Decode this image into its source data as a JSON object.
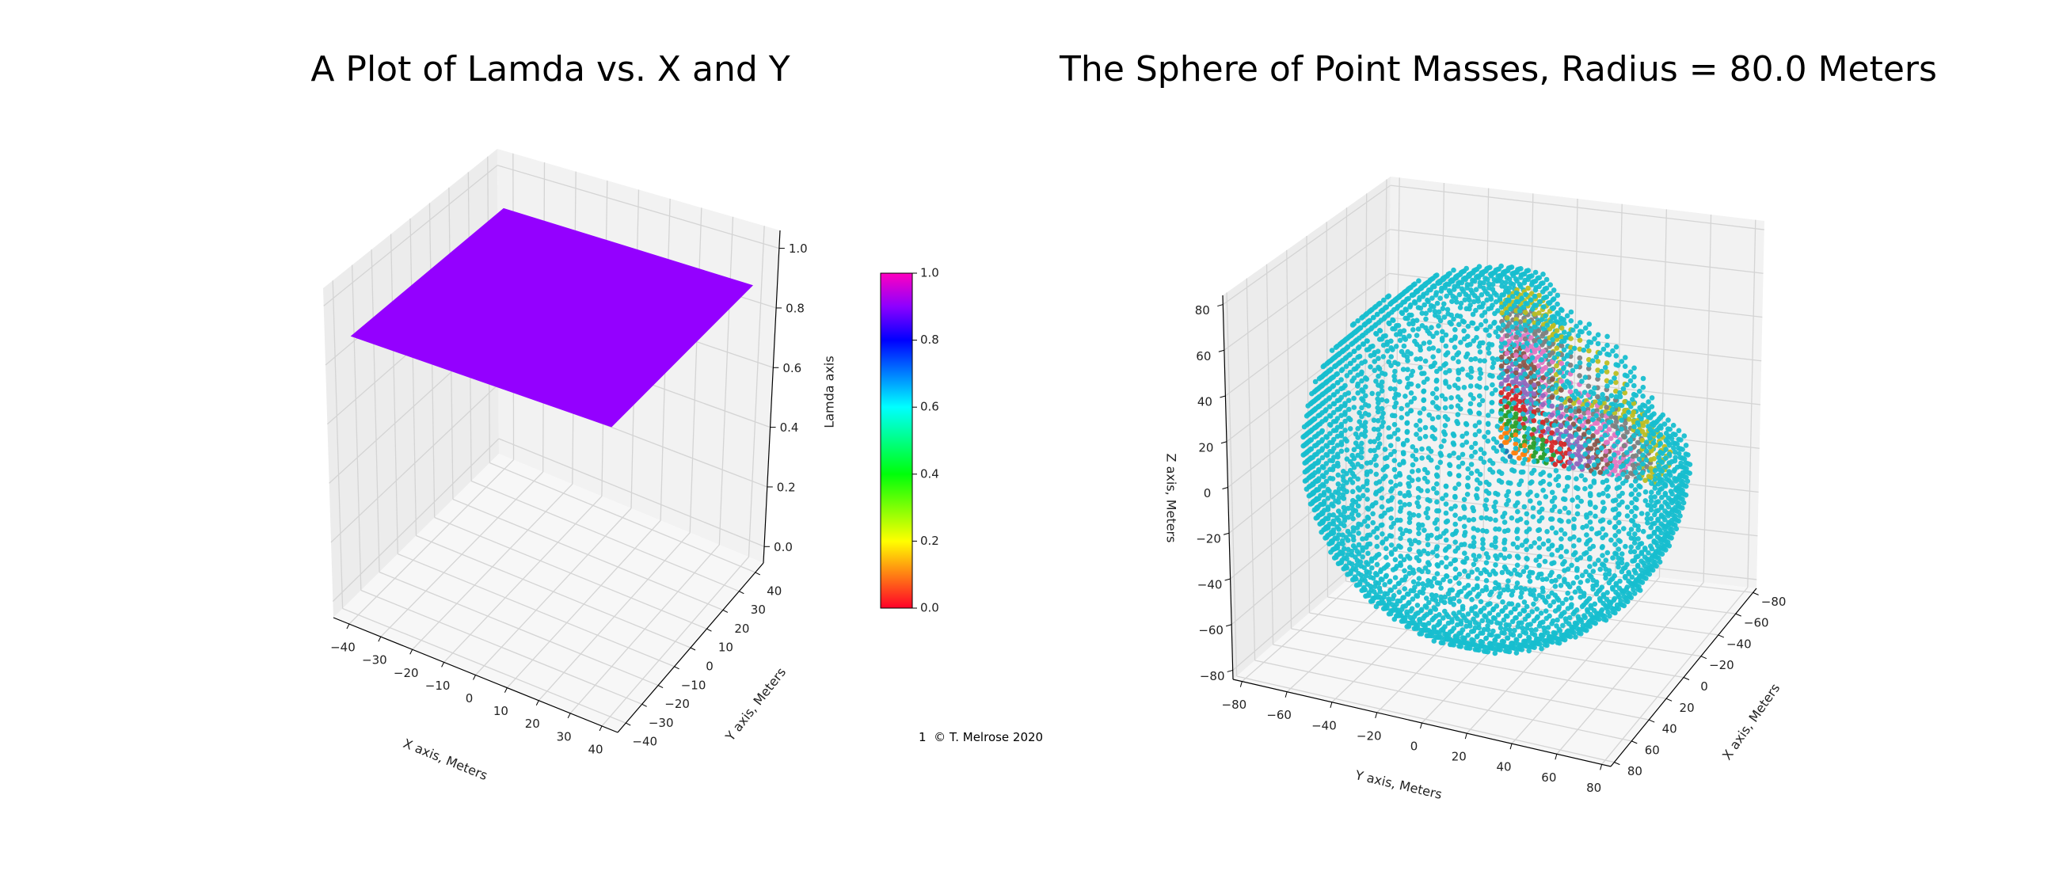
{
  "footer": "1  © T. Melrose 2020",
  "chart_data": [
    {
      "type": "surface",
      "title": "A Plot of Lamda vs. X and Y",
      "xlabel": "X axis, Meters",
      "ylabel": "Y axis, Meters",
      "zlabel": "Lamda axis",
      "xlim": [
        -45,
        45
      ],
      "ylim": [
        -45,
        45
      ],
      "zlim": [
        -0.055,
        1.06
      ],
      "xticks": [
        -40,
        -30,
        -20,
        -10,
        0,
        10,
        20,
        30,
        40
      ],
      "yticks": [
        -40,
        -30,
        -20,
        -10,
        0,
        10,
        20,
        30,
        40
      ],
      "zticks": [
        0.0,
        0.2,
        0.4,
        0.6,
        0.8,
        1.0
      ],
      "xtick_labels": [
        "−40",
        "−30",
        "−20",
        "−10",
        "0",
        "10",
        "20",
        "30",
        "40"
      ],
      "ytick_labels": [
        "−40",
        "−30",
        "−20",
        "−10",
        "0",
        "10",
        "20",
        "30",
        "40"
      ],
      "ztick_labels": [
        "0.0",
        "0.2",
        "0.4",
        "0.6",
        "0.8",
        "1.0"
      ],
      "grid": true,
      "surface": {
        "x_range": [
          -40,
          40
        ],
        "y_range": [
          -40,
          40
        ],
        "z": 0.89,
        "color": "#9400ff"
      },
      "colorbar": {
        "colormap": "gist_rainbow",
        "range": [
          0,
          1
        ],
        "stops": [
          {
            "value": 0.0,
            "color": "#ff0028"
          },
          {
            "value": 0.2,
            "color": "#ffff00"
          },
          {
            "value": 0.4,
            "color": "#00ff0a"
          },
          {
            "value": 0.6,
            "color": "#00ffff"
          },
          {
            "value": 0.8,
            "color": "#0000ff"
          },
          {
            "value": 0.9,
            "color": "#8c00ff"
          },
          {
            "value": 1.0,
            "color": "#ff00bf"
          }
        ],
        "tick_labels": [
          "0.0",
          "0.2",
          "0.4",
          "0.6",
          "0.8",
          "1.0"
        ]
      }
    },
    {
      "type": "scatter3d",
      "title": "The Sphere of Point Masses, Radius = 80.0 Meters",
      "xlabel": "X axis, Meters",
      "ylabel": "Y axis, Meters",
      "zlabel": "Z axis, Meters",
      "lim": [
        -84,
        84
      ],
      "xticks": [
        80,
        60,
        40,
        20,
        0,
        -20,
        -40,
        -60,
        -80
      ],
      "yticks": [
        -80,
        -60,
        -40,
        -20,
        0,
        20,
        40,
        60,
        80
      ],
      "zticks": [
        -80,
        -60,
        -40,
        -20,
        0,
        20,
        40,
        60,
        80
      ],
      "xtick_labels": [
        "80",
        "60",
        "40",
        "20",
        "0",
        "−20",
        "−40",
        "−60",
        "−80"
      ],
      "ytick_labels": [
        "−80",
        "−60",
        "−40",
        "−20",
        "0",
        "20",
        "40",
        "60",
        "80"
      ],
      "ztick_labels": [
        "−80",
        "−60",
        "−40",
        "−20",
        "0",
        "20",
        "40",
        "60",
        "80"
      ],
      "grid": true,
      "sphere": {
        "radius": 80.0,
        "lattice_spacing": 4,
        "shell_width": 8,
        "shell_colors": [
          "#1f77b4",
          "#ff7f0e",
          "#2ca02c",
          "#d62728",
          "#9467bd",
          "#8c564b",
          "#e377c2",
          "#7f7f7f",
          "#bcbd22",
          "#17becf"
        ]
      }
    }
  ]
}
